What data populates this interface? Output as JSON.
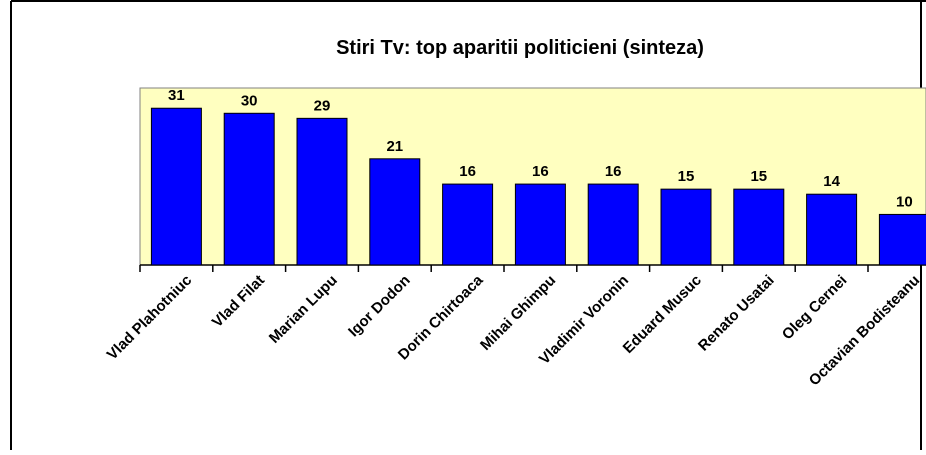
{
  "chart_data": {
    "type": "bar",
    "title": "Stiri Tv: top aparitii politicieni (sinteza)",
    "categories": [
      "Vlad Plahotniuc",
      "Vlad Filat",
      "Marian Lupu",
      "Igor Dodon",
      "Dorin Chirtoaca",
      "Mihai Ghimpu",
      "Vladimir Voronin",
      "Eduard Musuc",
      "Renato Usatai",
      "Oleg Cernei",
      "Octavian Bodisteanu"
    ],
    "values": [
      31,
      30,
      29,
      21,
      16,
      16,
      16,
      15,
      15,
      14,
      10
    ],
    "color": "#0000ff",
    "plot_color": "#ffffc0",
    "ylim": [
      0,
      35
    ],
    "grid": false
  }
}
